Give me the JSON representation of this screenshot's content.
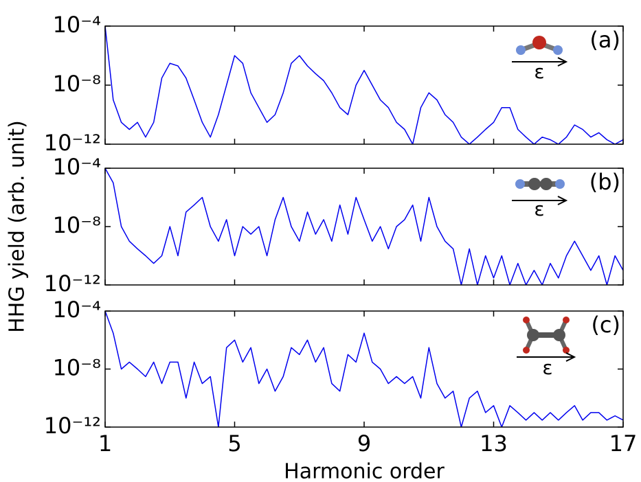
{
  "chart_data": [
    {
      "type": "line",
      "label": "(a)",
      "epsilon": "ε",
      "log_scale": true,
      "xlim": [
        1,
        17
      ],
      "ylim": [
        1e-12,
        0.0001
      ],
      "yticks": [
        {
          "value": 0.0001,
          "label": "10⁻⁴"
        },
        {
          "value": 1e-08,
          "label": "10⁻⁸"
        },
        {
          "value": 1e-12,
          "label": "10⁻¹²"
        }
      ],
      "x": [
        1,
        1.25,
        1.5,
        1.75,
        2,
        2.25,
        2.5,
        2.75,
        3,
        3.25,
        3.5,
        3.75,
        4,
        4.25,
        4.5,
        4.75,
        5,
        5.25,
        5.5,
        5.75,
        6,
        6.25,
        6.5,
        6.75,
        7,
        7.25,
        7.5,
        7.75,
        8,
        8.25,
        8.5,
        8.75,
        9,
        9.25,
        9.5,
        9.75,
        10,
        10.25,
        10.5,
        10.75,
        11,
        11.25,
        11.5,
        11.75,
        12,
        12.25,
        12.5,
        12.75,
        13,
        13.25,
        13.5,
        13.75,
        14,
        14.25,
        14.5,
        14.75,
        15,
        15.25,
        15.5,
        15.75,
        16,
        16.25,
        16.5,
        16.75,
        17
      ],
      "series": [
        {
          "color": "#0000ee",
          "values": [
            0.0001,
            1e-09,
            3e-11,
            1e-11,
            3e-11,
            3e-12,
            3e-11,
            3e-08,
            3e-07,
            2e-07,
            3e-08,
            1e-09,
            3e-11,
            3e-12,
            1e-10,
            1e-08,
            1e-06,
            3e-07,
            3e-09,
            3e-10,
            3e-11,
            1e-10,
            3e-09,
            3e-07,
            1e-06,
            2e-07,
            6e-08,
            2e-08,
            3e-09,
            3e-10,
            1e-10,
            1e-08,
            1e-07,
            1e-08,
            1e-09,
            3e-10,
            3e-11,
            1e-11,
            1e-12,
            3e-10,
            3e-09,
            1e-09,
            1e-10,
            3e-11,
            3e-12,
            1e-12,
            3e-12,
            1e-11,
            3e-11,
            3e-10,
            3e-10,
            1e-11,
            3e-12,
            1e-12,
            3e-12,
            2e-12,
            1e-12,
            3e-12,
            2e-11,
            1e-11,
            3e-12,
            6e-12,
            2e-12,
            1e-12,
            2e-12
          ]
        }
      ]
    },
    {
      "type": "line",
      "label": "(b)",
      "epsilon": "ε",
      "log_scale": true,
      "xlim": [
        1,
        17
      ],
      "ylim": [
        1e-12,
        0.0001
      ],
      "ylabel": "HHG yield (arb. unit)",
      "yticks": [
        {
          "value": 0.0001,
          "label": "10⁻⁴"
        },
        {
          "value": 1e-08,
          "label": "10⁻⁸"
        },
        {
          "value": 1e-12,
          "label": "10⁻¹²"
        }
      ],
      "x": [
        1,
        1.25,
        1.5,
        1.75,
        2,
        2.25,
        2.5,
        2.75,
        3,
        3.25,
        3.5,
        3.75,
        4,
        4.25,
        4.5,
        4.75,
        5,
        5.25,
        5.5,
        5.75,
        6,
        6.25,
        6.5,
        6.75,
        7,
        7.25,
        7.5,
        7.75,
        8,
        8.25,
        8.5,
        8.75,
        9,
        9.25,
        9.5,
        9.75,
        10,
        10.25,
        10.5,
        10.75,
        11,
        11.25,
        11.5,
        11.75,
        12,
        12.25,
        12.5,
        12.75,
        13,
        13.25,
        13.5,
        13.75,
        14,
        14.25,
        14.5,
        14.75,
        15,
        15.25,
        15.5,
        15.75,
        16,
        16.25,
        16.5,
        16.75,
        17
      ],
      "series": [
        {
          "color": "#0000ee",
          "values": [
            0.0001,
            1e-05,
            1e-08,
            1e-09,
            3e-10,
            1e-10,
            3e-11,
            1e-10,
            1e-08,
            1e-10,
            1e-07,
            3e-07,
            1e-06,
            1e-08,
            1e-09,
            3e-08,
            1e-10,
            1e-08,
            3e-09,
            1e-08,
            1e-10,
            3e-08,
            1e-06,
            1e-08,
            1e-09,
            1e-07,
            3e-09,
            3e-08,
            1e-09,
            3e-07,
            3e-09,
            1e-06,
            3e-08,
            1e-09,
            1e-08,
            3e-10,
            1e-08,
            3e-08,
            3e-07,
            1e-09,
            1e-06,
            1e-08,
            1e-09,
            3e-10,
            1e-12,
            3e-10,
            1e-12,
            1e-10,
            3e-12,
            1e-10,
            1e-12,
            3e-11,
            1e-12,
            1e-11,
            1e-12,
            3e-11,
            3e-12,
            1e-10,
            1e-09,
            1e-10,
            1e-11,
            1e-10,
            1e-12,
            1e-10,
            1e-11
          ]
        }
      ]
    },
    {
      "type": "line",
      "label": "(c)",
      "epsilon": "ε",
      "log_scale": true,
      "xlim": [
        1,
        17
      ],
      "ylim": [
        1e-12,
        0.0001
      ],
      "xlabel": "Harmonic order",
      "xticks": [
        1,
        5,
        9,
        13,
        17
      ],
      "yticks": [
        {
          "value": 0.0001,
          "label": "10⁻⁴"
        },
        {
          "value": 1e-08,
          "label": "10⁻⁸"
        },
        {
          "value": 1e-12,
          "label": "10⁻¹²"
        }
      ],
      "x": [
        1,
        1.25,
        1.5,
        1.75,
        2,
        2.25,
        2.5,
        2.75,
        3,
        3.25,
        3.5,
        3.75,
        4,
        4.25,
        4.5,
        4.75,
        5,
        5.25,
        5.5,
        5.75,
        6,
        6.25,
        6.5,
        6.75,
        7,
        7.25,
        7.5,
        7.75,
        8,
        8.25,
        8.5,
        8.75,
        9,
        9.25,
        9.5,
        9.75,
        10,
        10.25,
        10.5,
        10.75,
        11,
        11.25,
        11.5,
        11.75,
        12,
        12.25,
        12.5,
        12.75,
        13,
        13.25,
        13.5,
        13.75,
        14,
        14.25,
        14.5,
        14.75,
        15,
        15.25,
        15.5,
        15.75,
        16,
        16.25,
        16.5,
        16.75,
        17
      ],
      "series": [
        {
          "color": "#0000ee",
          "values": [
            0.0001,
            3e-06,
            1e-08,
            3e-08,
            1e-08,
            3e-09,
            3e-08,
            1e-09,
            3e-08,
            3e-08,
            1e-10,
            3e-08,
            1e-09,
            3e-09,
            1e-12,
            3e-07,
            1e-06,
            3e-08,
            3e-07,
            1e-09,
            1e-08,
            3e-10,
            3e-09,
            3e-07,
            1e-07,
            1e-06,
            3e-08,
            3e-07,
            1e-09,
            3e-10,
            1e-07,
            3e-08,
            3e-06,
            3e-08,
            1e-08,
            1e-09,
            3e-09,
            1e-09,
            3e-09,
            1e-10,
            3e-07,
            1e-09,
            1e-10,
            3e-10,
            1e-12,
            1e-10,
            3e-10,
            1e-11,
            3e-11,
            1e-12,
            3e-11,
            1e-11,
            3e-12,
            1e-11,
            3e-12,
            1e-11,
            3e-12,
            1e-11,
            3e-11,
            3e-12,
            1e-11,
            1e-11,
            3e-12,
            6e-12,
            3e-12
          ]
        }
      ]
    }
  ]
}
